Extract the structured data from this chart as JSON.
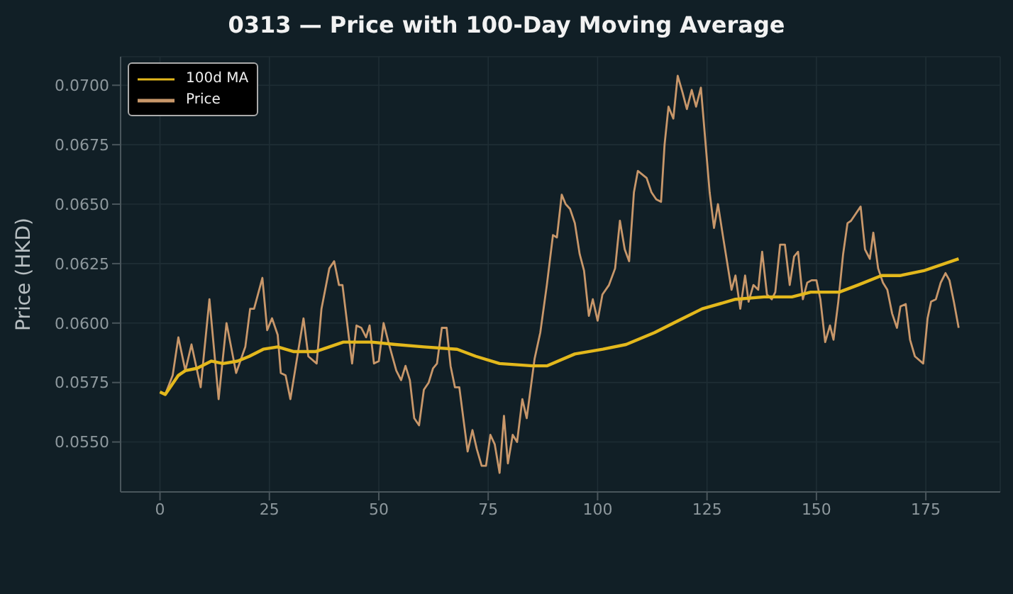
{
  "chart_data": {
    "type": "line",
    "title": "0313 — Price with 100-Day Moving Average",
    "ylabel": "Price (HKD)",
    "xlim": [
      -9,
      192
    ],
    "xticks": [
      0,
      25,
      50,
      75,
      100,
      125,
      150,
      175
    ],
    "ylim": [
      0.0529,
      0.0712
    ],
    "yticks": [
      {
        "value": 0.055,
        "label": "0.0550"
      },
      {
        "value": 0.0575,
        "label": "0.0575"
      },
      {
        "value": 0.06,
        "label": "0.0600"
      },
      {
        "value": 0.0625,
        "label": "0.0625"
      },
      {
        "value": 0.065,
        "label": "0.0650"
      },
      {
        "value": 0.0675,
        "label": "0.0675"
      },
      {
        "value": 0.07,
        "label": "0.0700"
      }
    ],
    "grid": true,
    "legend": "top left",
    "marker": "none",
    "line_style": "solid",
    "series": [
      {
        "name": "Price",
        "color": "#c8976a",
        "x": [
          0,
          1.2,
          2.9,
          4.2,
          5.8,
          7.2,
          9.3,
          11.3,
          13.4,
          15.2,
          17.4,
          19.5,
          20.6,
          21.5,
          23.4,
          24.5,
          25.6,
          26.9,
          27.6,
          28.7,
          29.8,
          32.8,
          33.9,
          35.8,
          36.9,
          38.7,
          39.8,
          40.9,
          41.7,
          43.9,
          44.9,
          46,
          47.1,
          47.9,
          48.9,
          50,
          51.1,
          52.2,
          54,
          55.1,
          56.1,
          57.1,
          58.1,
          59.2,
          60.3,
          61.4,
          62.4,
          63.3,
          64.4,
          65.5,
          66.4,
          67.4,
          68.4,
          70.3,
          71.4,
          72.4,
          73.5,
          74.5,
          75.5,
          76.5,
          77.6,
          78.6,
          79.5,
          80.6,
          81.6,
          82.8,
          83.8,
          85.6,
          86.9,
          88.4,
          89.8,
          90.7,
          91.8,
          92.7,
          93.7,
          94.8,
          95.9,
          96.9,
          98,
          98.9,
          100,
          101.1,
          102.6,
          104,
          105.1,
          106.2,
          107.2,
          108.3,
          109.2,
          111.2,
          112.3,
          113.4,
          114.5,
          115.3,
          116.2,
          117.3,
          118.3,
          119.4,
          120.4,
          121.5,
          122.5,
          123.6,
          125.6,
          126.6,
          127.5,
          128.6,
          130.6,
          131.5,
          132.6,
          133.7,
          134.5,
          135.6,
          136.7,
          137.6,
          138.7,
          139.8,
          140.6,
          141.7,
          142.8,
          143.9,
          144.9,
          145.8,
          146.9,
          147.9,
          148.9,
          150,
          150.9,
          152,
          153.1,
          153.9,
          155,
          156.1,
          157.1,
          157.9,
          160.1,
          161.1,
          162.2,
          163,
          164.1,
          165.2,
          166.2,
          167.3,
          168.4,
          169.2,
          170.4,
          171.4,
          172.5,
          174.4,
          175.4,
          176.2,
          177.3,
          178.4,
          179.5,
          180.4,
          181.4,
          182.5
        ],
        "values": [
          0.0571,
          0.057,
          0.0578,
          0.0594,
          0.058,
          0.0591,
          0.0573,
          0.061,
          0.0568,
          0.06,
          0.0579,
          0.059,
          0.0606,
          0.0606,
          0.0619,
          0.0597,
          0.0602,
          0.0595,
          0.0579,
          0.0578,
          0.0568,
          0.0602,
          0.0586,
          0.0583,
          0.0606,
          0.0623,
          0.0626,
          0.0616,
          0.0616,
          0.0583,
          0.0599,
          0.0598,
          0.0594,
          0.0599,
          0.0583,
          0.0584,
          0.06,
          0.0592,
          0.058,
          0.0576,
          0.0582,
          0.0576,
          0.056,
          0.0557,
          0.0572,
          0.0575,
          0.0581,
          0.0583,
          0.0598,
          0.0598,
          0.0582,
          0.0573,
          0.0573,
          0.0546,
          0.0555,
          0.0547,
          0.054,
          0.054,
          0.0553,
          0.0549,
          0.0537,
          0.0561,
          0.0541,
          0.0553,
          0.055,
          0.0568,
          0.056,
          0.0585,
          0.0596,
          0.0616,
          0.0637,
          0.0636,
          0.0654,
          0.065,
          0.0648,
          0.0642,
          0.0629,
          0.0622,
          0.0603,
          0.061,
          0.0601,
          0.0612,
          0.0616,
          0.0623,
          0.0643,
          0.0631,
          0.0626,
          0.0655,
          0.0664,
          0.0661,
          0.0655,
          0.0652,
          0.0651,
          0.0675,
          0.0691,
          0.0686,
          0.0704,
          0.0697,
          0.069,
          0.0698,
          0.0691,
          0.0699,
          0.0655,
          0.064,
          0.065,
          0.0637,
          0.0614,
          0.062,
          0.0606,
          0.062,
          0.0609,
          0.0616,
          0.0614,
          0.063,
          0.0612,
          0.061,
          0.0613,
          0.0633,
          0.0633,
          0.0616,
          0.0628,
          0.063,
          0.061,
          0.0617,
          0.0618,
          0.0618,
          0.061,
          0.0592,
          0.0599,
          0.0593,
          0.0609,
          0.0629,
          0.0642,
          0.0643,
          0.0649,
          0.0631,
          0.0627,
          0.0638,
          0.0623,
          0.0617,
          0.0614,
          0.0604,
          0.0598,
          0.0607,
          0.0608,
          0.0593,
          0.0586,
          0.0583,
          0.0602,
          0.0609,
          0.061,
          0.0617,
          0.0621,
          0.0618,
          0.0609,
          0.0598
        ]
      },
      {
        "name": "100d MA",
        "color": "#e3b81c",
        "x": [
          0,
          1.2,
          4.2,
          5.8,
          8.5,
          11.7,
          14.4,
          17.7,
          20.4,
          23.6,
          26.9,
          30.6,
          35.5,
          38.7,
          41.9,
          48.4,
          53.8,
          60.3,
          67.9,
          72.2,
          77.6,
          85.1,
          88.4,
          94.8,
          101.2,
          106.5,
          113,
          118.4,
          123.9,
          131.5,
          138,
          144.4,
          148.7,
          155.2,
          159.5,
          164.9,
          169.2,
          174.5,
          182.5
        ],
        "values": [
          0.0571,
          0.057,
          0.0578,
          0.058,
          0.0581,
          0.0584,
          0.0583,
          0.0584,
          0.0586,
          0.0589,
          0.059,
          0.0588,
          0.0588,
          0.059,
          0.0592,
          0.0592,
          0.0591,
          0.059,
          0.0589,
          0.0586,
          0.0583,
          0.0582,
          0.0582,
          0.0587,
          0.0589,
          0.0591,
          0.0596,
          0.0601,
          0.0606,
          0.061,
          0.0611,
          0.0611,
          0.0613,
          0.0613,
          0.0616,
          0.062,
          0.062,
          0.0622,
          0.0627
        ]
      }
    ]
  }
}
